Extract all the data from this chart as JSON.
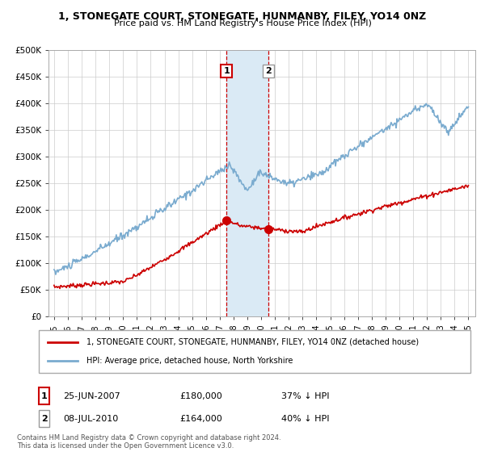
{
  "title": "1, STONEGATE COURT, STONEGATE, HUNMANBY, FILEY, YO14 0NZ",
  "subtitle": "Price paid vs. HM Land Registry's House Price Index (HPI)",
  "legend_label_red": "1, STONEGATE COURT, STONEGATE, HUNMANBY, FILEY, YO14 0NZ (detached house)",
  "legend_label_blue": "HPI: Average price, detached house, North Yorkshire",
  "footnote": "Contains HM Land Registry data © Crown copyright and database right 2024.\nThis data is licensed under the Open Government Licence v3.0.",
  "transaction1_date": "25-JUN-2007",
  "transaction1_price": "£180,000",
  "transaction1_hpi": "37% ↓ HPI",
  "transaction2_date": "08-JUL-2010",
  "transaction2_price": "£164,000",
  "transaction2_hpi": "40% ↓ HPI",
  "yticks": [
    0,
    50000,
    100000,
    150000,
    200000,
    250000,
    300000,
    350000,
    400000,
    450000,
    500000
  ],
  "color_red": "#cc0000",
  "color_blue": "#7aabcf",
  "color_shading": "#daeaf5",
  "transaction1_x": 2007.49,
  "transaction2_x": 2010.52,
  "background_color": "#ffffff",
  "grid_color": "#cccccc",
  "xmin": 1995,
  "xmax": 2025
}
